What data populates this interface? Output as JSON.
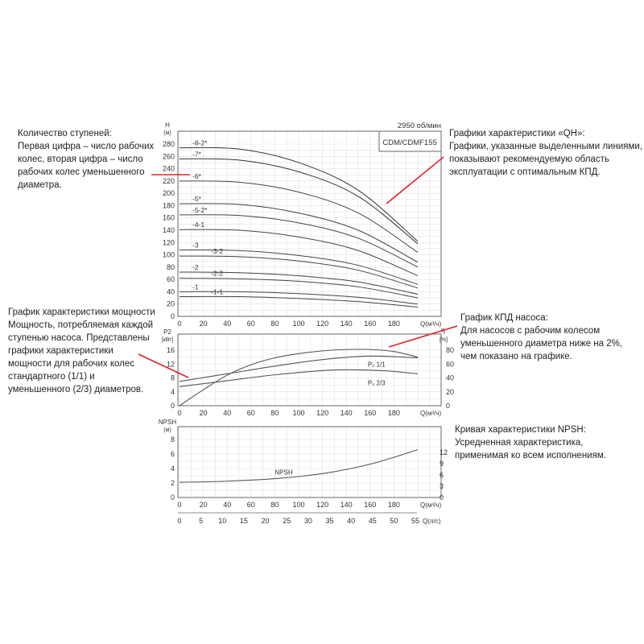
{
  "accent_color": "#d9252b",
  "annotations": {
    "stages": {
      "lines": [
        "Количество ступеней:",
        "Первая цифра – число рабочих",
        "колес, вторая цифра – число",
        "рабочих колес уменьшенного",
        "диаметра."
      ]
    },
    "qh": {
      "lines": [
        "Графики характеристики «QH»:",
        "Графики, указанные выделенными линиями,",
        "показывают рекомендуемую область",
        "эксплуатации с оптимальным КПД."
      ]
    },
    "power": {
      "lines": [
        "График характеристики мощности",
        "Мощность, потребляемая каждой",
        "ступенью насоса. Представлены",
        "графики характеристики",
        "мощности для рабочих колес",
        "стандартного (1/1) и",
        "уменьшенного (2/3) диаметров."
      ]
    },
    "efficiency": {
      "lines": [
        "График КПД насоса:",
        "Для насосов с рабочим колесом",
        "уменьшенного диаметра ниже на 2%,",
        "чем показано на графике."
      ]
    },
    "npsh": {
      "lines": [
        "Кривая характеристики NPSH:",
        "Усредненная характеристика,",
        "применимая ко всем исполнениям."
      ]
    }
  },
  "chart_data": [
    {
      "type": "line",
      "title": "CDM/CDMF155",
      "speed": "2950 об/мин",
      "ylabel": "H",
      "yunit": "(м)",
      "xlabel": "Q(м³/ч)",
      "xlim": [
        0,
        200
      ],
      "ylim": [
        0,
        290
      ],
      "xticks": [
        0,
        20,
        40,
        60,
        80,
        100,
        120,
        140,
        160,
        180
      ],
      "yticks": [
        0,
        20,
        40,
        60,
        80,
        100,
        120,
        140,
        160,
        180,
        200,
        220,
        240,
        260,
        280
      ],
      "grid": true,
      "series": [
        {
          "name": "-8-2*",
          "x": [
            0,
            50,
            100,
            150,
            200
          ],
          "y": [
            274,
            272,
            250,
            205,
            122
          ]
        },
        {
          "name": "-7*",
          "x": [
            0,
            50,
            100,
            150,
            200
          ],
          "y": [
            256,
            254,
            235,
            195,
            118
          ]
        },
        {
          "name": "-6*",
          "x": [
            0,
            50,
            100,
            150,
            200
          ],
          "y": [
            220,
            218,
            202,
            168,
            104
          ]
        },
        {
          "name": "-5*",
          "x": [
            0,
            50,
            100,
            150,
            200
          ],
          "y": [
            183,
            182,
            168,
            140,
            88
          ]
        },
        {
          "name": "-5-2*",
          "x": [
            0,
            50,
            100,
            150,
            200
          ],
          "y": [
            165,
            164,
            152,
            127,
            80
          ]
        },
        {
          "name": "-4-1",
          "x": [
            0,
            50,
            100,
            150,
            200
          ],
          "y": [
            141,
            140,
            129,
            107,
            66
          ]
        },
        {
          "name": "-3",
          "x": [
            0,
            50,
            100,
            150,
            200
          ],
          "y": [
            108,
            107,
            99,
            83,
            52
          ]
        },
        {
          "name": "-3-2",
          "x": [
            0,
            50,
            100,
            150,
            200
          ],
          "y": [
            98,
            97,
            90,
            75,
            46
          ]
        },
        {
          "name": "-2",
          "x": [
            0,
            50,
            100,
            150,
            200
          ],
          "y": [
            72,
            71,
            66,
            56,
            36
          ]
        },
        {
          "name": "-2-2",
          "x": [
            0,
            50,
            100,
            150,
            200
          ],
          "y": [
            62,
            61,
            57,
            48,
            30
          ]
        },
        {
          "name": "-1",
          "x": [
            0,
            50,
            100,
            150,
            200
          ],
          "y": [
            40,
            40,
            37,
            31,
            20
          ]
        },
        {
          "name": "-1-1",
          "x": [
            0,
            50,
            100,
            150,
            200
          ],
          "y": [
            32,
            32,
            29,
            24,
            15
          ]
        }
      ]
    },
    {
      "type": "line",
      "ylabel": "P2",
      "yunit": "[кВт]",
      "y2label": "η",
      "y2unit": "[%]",
      "xlabel": "Q(м³/ч)",
      "xlim": [
        0,
        200
      ],
      "ylim": [
        0,
        18
      ],
      "y2lim": [
        0,
        90
      ],
      "xticks": [
        0,
        20,
        40,
        60,
        80,
        100,
        120,
        140,
        160,
        180
      ],
      "yticks": [
        0,
        4,
        8,
        12,
        16
      ],
      "y2ticks": [
        0,
        20,
        40,
        60,
        80
      ],
      "grid": true,
      "series": [
        {
          "name": "η",
          "axis": "right",
          "x": [
            0,
            20,
            40,
            60,
            80,
            100,
            120,
            140,
            160,
            180,
            200
          ],
          "y": [
            0,
            23,
            44,
            59,
            69,
            75,
            79,
            81,
            81,
            78,
            70
          ]
        },
        {
          "name": "P₂ 1/1",
          "axis": "left",
          "x": [
            0,
            40,
            80,
            120,
            160,
            200
          ],
          "y": [
            7.0,
            9.2,
            11.4,
            13.3,
            14.3,
            13.8
          ]
        },
        {
          "name": "P₂ 2/3",
          "axis": "left",
          "x": [
            0,
            40,
            80,
            130,
            170,
            200
          ],
          "y": [
            5.5,
            7.2,
            8.9,
            10.3,
            10.1,
            9.2
          ]
        }
      ]
    },
    {
      "type": "line",
      "ylabel": "NPSH",
      "yunit": "(м)",
      "xlabel": "Q(м³/ч)",
      "x2label": "Q(л/с)",
      "xlim": [
        0,
        200
      ],
      "ylim": [
        0,
        9
      ],
      "xticks": [
        0,
        20,
        40,
        60,
        80,
        100,
        120,
        140,
        160,
        180
      ],
      "yticks": [
        0,
        2,
        4,
        6,
        8
      ],
      "y2ticks": [
        0,
        3,
        6,
        9,
        12
      ],
      "x2ticks": [
        0,
        5,
        10,
        15,
        20,
        25,
        30,
        35,
        40,
        45,
        50,
        55
      ],
      "grid": true,
      "series": [
        {
          "name": "NPSH",
          "x": [
            0,
            40,
            80,
            120,
            160,
            200
          ],
          "y": [
            2.1,
            2.25,
            2.6,
            3.3,
            4.6,
            6.6
          ]
        }
      ]
    }
  ]
}
